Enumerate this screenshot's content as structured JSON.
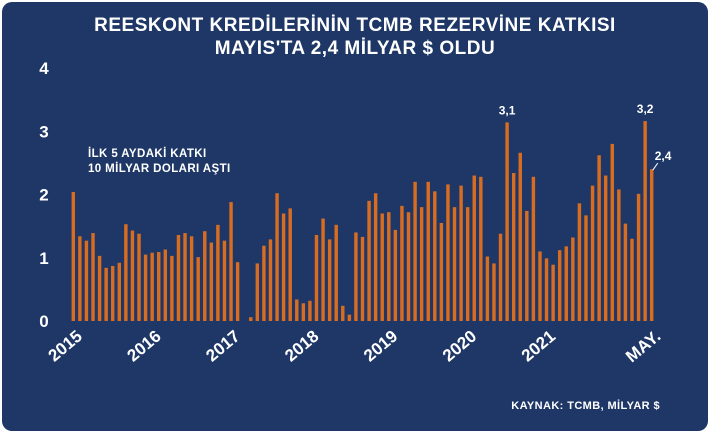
{
  "title_line1": "REESKONT KREDİLERİNİN TCMB REZERVİNE KATKISI",
  "title_line2": "MAYIS'TA 2,4 MİLYAR $ OLDU",
  "note_line1": "İLK 5 AYDAKİ KATKI",
  "note_line2": "10 MİLYAR DOLARI AŞTI",
  "source": "KAYNAK: TCMB, MİLYAR $",
  "colors": {
    "background": "#1e3766",
    "bar": "#d86d22",
    "text": "#ffffff"
  },
  "chart_data": {
    "type": "bar",
    "title": "REESKONT KREDİLERİNİN TCMB REZERVİNE KATKISI MAYIS'TA 2,4 MİLYAR $ OLDU",
    "ylabel": "",
    "ylim": [
      0,
      4
    ],
    "yticks": [
      "0",
      "1",
      "2",
      "3",
      "4"
    ],
    "grid": false,
    "x_labels": [
      "2015",
      "2016",
      "2017",
      "2018",
      "2019",
      "2020",
      "2021",
      "MAY."
    ],
    "x_label_at_index": [
      0,
      12,
      24,
      36,
      48,
      60,
      72,
      88
    ],
    "x_start": "2015-01",
    "x_end": "2022-05",
    "values": [
      2.04,
      1.34,
      1.27,
      1.39,
      1.03,
      0.84,
      0.87,
      0.92,
      1.53,
      1.43,
      1.38,
      1.05,
      1.08,
      1.09,
      1.13,
      1.03,
      1.36,
      1.39,
      1.34,
      1.01,
      1.42,
      1.24,
      1.52,
      1.27,
      1.88,
      0.93,
      0.0,
      0.06,
      0.91,
      1.19,
      1.29,
      2.02,
      1.7,
      1.78,
      0.34,
      0.28,
      0.32,
      1.36,
      1.62,
      1.29,
      1.52,
      0.24,
      0.1,
      1.4,
      1.33,
      1.9,
      2.02,
      1.7,
      1.72,
      1.44,
      1.82,
      1.72,
      2.2,
      1.8,
      2.2,
      2.05,
      1.55,
      2.16,
      1.8,
      2.14,
      1.8,
      2.3,
      2.28,
      1.02,
      0.91,
      1.38,
      3.14,
      2.34,
      2.66,
      1.74,
      2.28,
      1.1,
      0.99,
      0.89,
      1.12,
      1.18,
      1.32,
      1.86,
      1.67,
      2.14,
      2.62,
      2.3,
      2.8,
      2.08,
      1.54,
      1.3,
      2.01,
      3.16,
      2.4
    ],
    "annotations": [
      {
        "text": "3,1",
        "index": 66,
        "value": 3.14
      },
      {
        "text": "3,2",
        "index": 87,
        "value": 3.16
      },
      {
        "text": "2,4",
        "index": 88,
        "value": 2.4
      }
    ]
  }
}
